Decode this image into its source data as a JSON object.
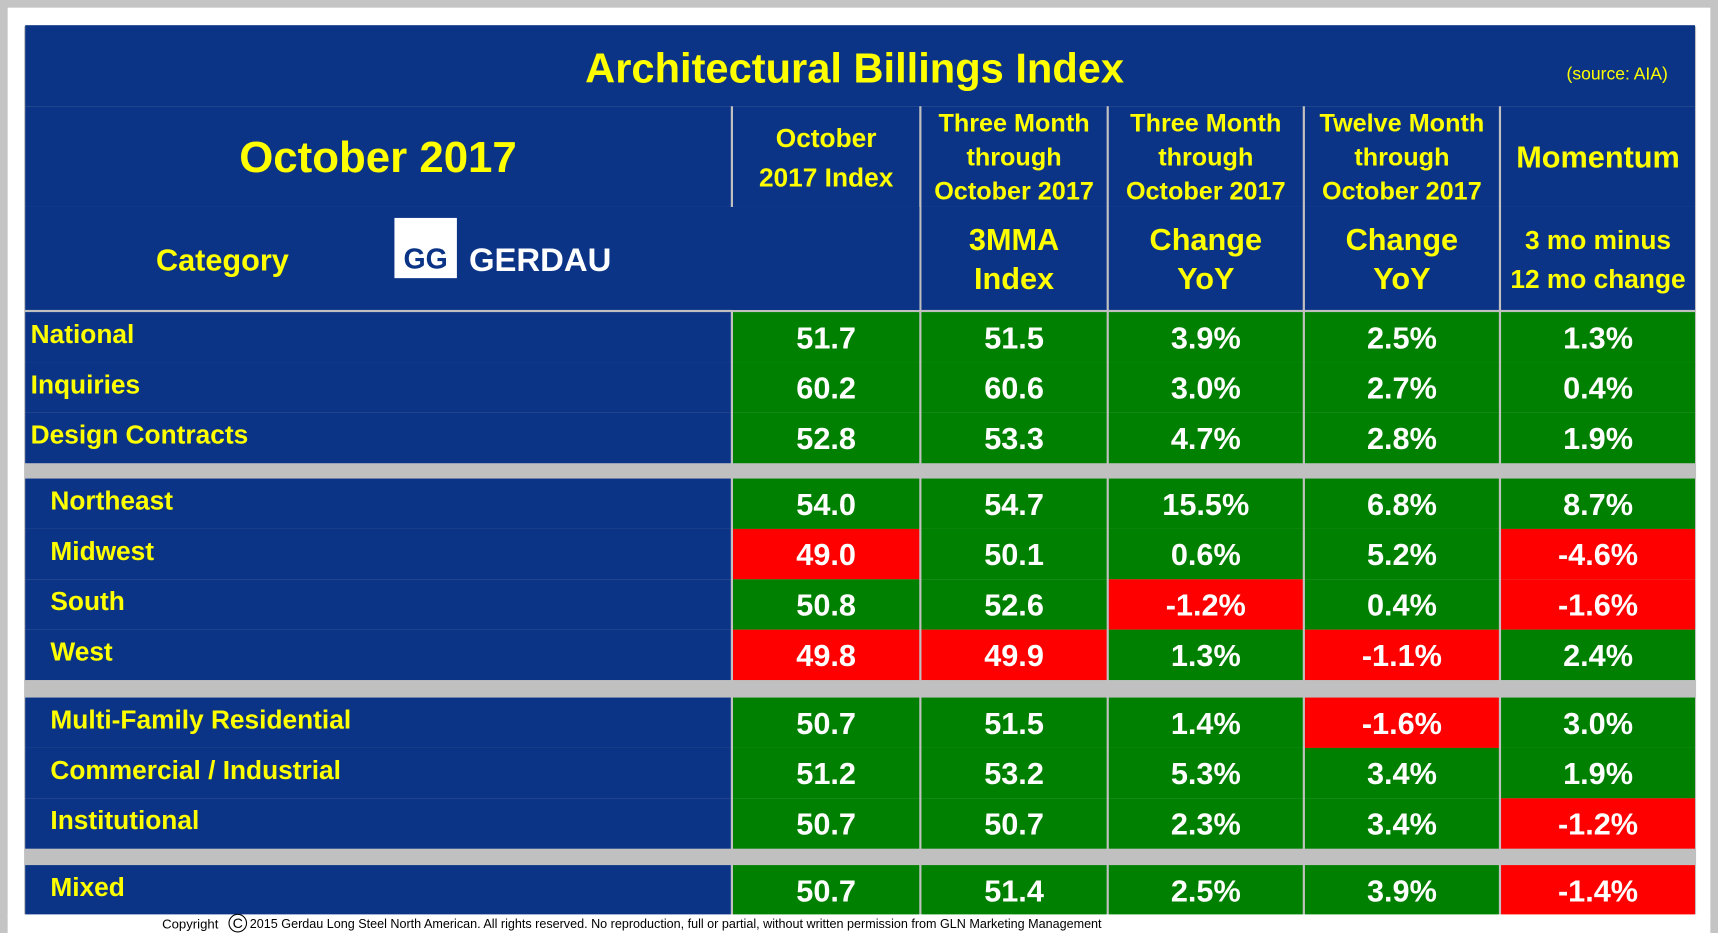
{
  "title": "Architectural Billings Index",
  "source": "(source: AIA)",
  "period": "October 2017",
  "category_label": "Category",
  "logo": {
    "mark": "GG",
    "name": "GERDAU"
  },
  "header_row1": [
    {
      "lines": [
        "October",
        "2017 Index"
      ]
    },
    {
      "lines": [
        "Three Month",
        "through",
        "October 2017"
      ]
    },
    {
      "lines": [
        "Three Month",
        "through",
        "October 2017"
      ]
    },
    {
      "lines": [
        "Twelve Month",
        "through",
        "October 2017"
      ]
    },
    {
      "lines": [
        "Momentum"
      ]
    }
  ],
  "header_row2": [
    {
      "lines": []
    },
    {
      "lines": [
        "3MMA",
        "Index"
      ]
    },
    {
      "lines": [
        "Change",
        "YoY"
      ]
    },
    {
      "lines": [
        "Change",
        "YoY"
      ]
    },
    {
      "lines": [
        "3 mo minus",
        "12 mo change"
      ]
    }
  ],
  "groups": [
    {
      "indent": false,
      "rows": [
        {
          "label": "National",
          "values": [
            "51.7",
            "51.5",
            "3.9%",
            "2.5%",
            "1.3%"
          ],
          "colors": [
            "#008000",
            "#008000",
            "#008000",
            "#008000",
            "#008000"
          ]
        },
        {
          "label": "Inquiries",
          "values": [
            "60.2",
            "60.6",
            "3.0%",
            "2.7%",
            "0.4%"
          ],
          "colors": [
            "#008000",
            "#008000",
            "#008000",
            "#008000",
            "#008000"
          ]
        },
        {
          "label": "Design Contracts",
          "values": [
            "52.8",
            "53.3",
            "4.7%",
            "2.8%",
            "1.9%"
          ],
          "colors": [
            "#008000",
            "#008000",
            "#008000",
            "#008000",
            "#008000"
          ]
        }
      ]
    },
    {
      "indent": true,
      "rows": [
        {
          "label": "Northeast",
          "values": [
            "54.0",
            "54.7",
            "15.5%",
            "6.8%",
            "8.7%"
          ],
          "colors": [
            "#008000",
            "#008000",
            "#008000",
            "#008000",
            "#008000"
          ]
        },
        {
          "label": "Midwest",
          "values": [
            "49.0",
            "50.1",
            "0.6%",
            "5.2%",
            "-4.6%"
          ],
          "colors": [
            "#ff0000",
            "#008000",
            "#008000",
            "#008000",
            "#ff0000"
          ]
        },
        {
          "label": "South",
          "values": [
            "50.8",
            "52.6",
            "-1.2%",
            "0.4%",
            "-1.6%"
          ],
          "colors": [
            "#008000",
            "#008000",
            "#ff0000",
            "#008000",
            "#ff0000"
          ]
        },
        {
          "label": "West",
          "values": [
            "49.8",
            "49.9",
            "1.3%",
            "-1.1%",
            "2.4%"
          ],
          "colors": [
            "#ff0000",
            "#ff0000",
            "#008000",
            "#ff0000",
            "#008000"
          ]
        }
      ]
    },
    {
      "indent": true,
      "rows": [
        {
          "label": "Multi-Family Residential",
          "values": [
            "50.7",
            "51.5",
            "1.4%",
            "-1.6%",
            "3.0%"
          ],
          "colors": [
            "#008000",
            "#008000",
            "#008000",
            "#ff0000",
            "#008000"
          ]
        },
        {
          "label": "Commercial / Industrial",
          "values": [
            "51.2",
            "53.2",
            "5.3%",
            "3.4%",
            "1.9%"
          ],
          "colors": [
            "#008000",
            "#008000",
            "#008000",
            "#008000",
            "#008000"
          ]
        },
        {
          "label": "Institutional",
          "values": [
            "50.7",
            "50.7",
            "2.3%",
            "3.4%",
            "-1.2%"
          ],
          "colors": [
            "#008000",
            "#008000",
            "#008000",
            "#008000",
            "#ff0000"
          ]
        }
      ]
    },
    {
      "indent": true,
      "rows": [
        {
          "label": "Mixed",
          "values": [
            "50.7",
            "51.4",
            "2.5%",
            "3.9%",
            "-1.4%"
          ],
          "colors": [
            "#008000",
            "#008000",
            "#008000",
            "#008000",
            "#ff0000"
          ]
        }
      ]
    }
  ],
  "footer": {
    "copyright": "Copyright",
    "symbol": "C",
    "notice": "2015 Gerdau Long Steel North American.  All rights reserved.  No reproduction, full or partial, without written permission from GLN Marketing Management"
  }
}
